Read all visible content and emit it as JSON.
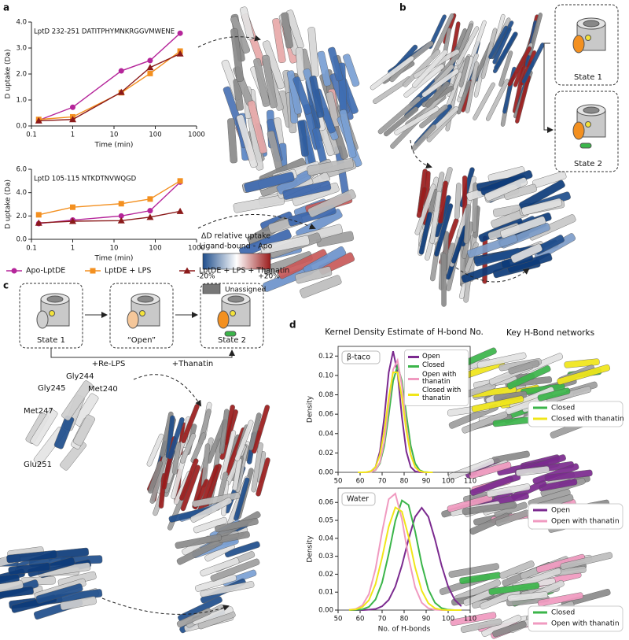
{
  "panel_labels": [
    "a",
    "b",
    "c",
    "d"
  ],
  "chart_data": [
    {
      "type": "line",
      "xscale": "log",
      "annotation": "LptD 232-251 DATITPHYMNKRGGVMWENE",
      "x_label": "Time (min)",
      "y_label": "D uptake (Da)",
      "x": [
        0.15,
        1,
        15,
        75,
        400
      ],
      "xlim": [
        0.1,
        1000
      ],
      "xticks": [
        0.1,
        1,
        10,
        100,
        1000
      ],
      "ylim": [
        0,
        4
      ],
      "yticks": [
        {
          "value": 0,
          "label": "0.0"
        },
        {
          "value": 1,
          "label": "1.0"
        },
        {
          "value": 2,
          "label": "2.0"
        },
        {
          "value": 3,
          "label": "3.0"
        },
        {
          "value": 4,
          "label": "4.0"
        }
      ],
      "series": [
        {
          "name": "Apo-LptDE",
          "color": "#b5259a",
          "marker": "circle",
          "values": [
            0.22,
            0.72,
            2.12,
            2.52,
            3.57
          ]
        },
        {
          "name": "LptDE + LPS",
          "color": "#f39020",
          "marker": "square",
          "values": [
            0.25,
            0.35,
            1.28,
            2.02,
            2.88
          ]
        },
        {
          "name": "LptDE + LPS + Thanatin",
          "color": "#8b1a1a",
          "marker": "triangle",
          "values": [
            0.2,
            0.25,
            1.3,
            2.25,
            2.78
          ]
        }
      ]
    },
    {
      "type": "line",
      "xscale": "log",
      "annotation": "LptD 105-115 NTKDTNVWQGD",
      "x_label": "Time (min)",
      "y_label": "D uptake (Da)",
      "x": [
        0.15,
        1,
        15,
        75,
        400
      ],
      "xlim": [
        0.1,
        1000
      ],
      "xticks": [
        0.1,
        1,
        10,
        100,
        1000
      ],
      "ylim": [
        0,
        6
      ],
      "yticks": [
        {
          "value": 0,
          "label": "0.0"
        },
        {
          "value": 2,
          "label": "2.0"
        },
        {
          "value": 4,
          "label": "4.0"
        },
        {
          "value": 6,
          "label": "6.0"
        }
      ],
      "series": [
        {
          "color": "#b5259a",
          "marker": "circle",
          "values": [
            1.35,
            1.65,
            2.0,
            2.45,
            4.9
          ]
        },
        {
          "color": "#f39020",
          "marker": "square",
          "values": [
            2.1,
            2.75,
            3.05,
            3.45,
            5.0
          ]
        },
        {
          "color": "#8b1a1a",
          "marker": "triangle",
          "values": [
            1.4,
            1.55,
            1.6,
            1.9,
            2.4
          ]
        }
      ]
    },
    {
      "type": "line",
      "title": "Kernel Density Estimate of H-bond No.",
      "annotation": "β-taco",
      "y_label": "Density",
      "x": [
        59,
        61,
        63,
        65,
        67,
        69,
        71,
        73,
        75,
        77,
        79,
        81,
        83,
        85,
        87,
        89,
        91,
        93
      ],
      "xlim": [
        50,
        110
      ],
      "xticks": [
        50,
        60,
        70,
        80,
        90,
        100,
        110
      ],
      "ylim": [
        0,
        0.13
      ],
      "yticks": [
        {
          "value": 0,
          "label": "0.00"
        },
        {
          "value": 0.02,
          "label": "0.02"
        },
        {
          "value": 0.04,
          "label": "0.04"
        },
        {
          "value": 0.06,
          "label": "0.06"
        },
        {
          "value": 0.08,
          "label": "0.08"
        },
        {
          "value": 0.1,
          "label": "0.10"
        },
        {
          "value": 0.12,
          "label": "0.12"
        }
      ],
      "legend": "upper right",
      "series": [
        {
          "name": "Open",
          "color": "#7b2a8f",
          "values": [
            0,
            0,
            0.0001,
            0.001,
            0.0055,
            0.0215,
            0.057,
            0.103,
            0.125,
            0.103,
            0.057,
            0.0215,
            0.0055,
            0.001,
            0.0001,
            0,
            0,
            0
          ]
        },
        {
          "name": "Closed",
          "color": "#3bb54a",
          "values": [
            0,
            0,
            0.0001,
            0.0004,
            0.0023,
            0.0093,
            0.0274,
            0.0594,
            0.0943,
            0.11,
            0.0943,
            0.0594,
            0.0274,
            0.0093,
            0.0023,
            0.0004,
            0.0001,
            0
          ]
        },
        {
          "name": "Open with thanatin",
          "color": "#f09ac0",
          "values": [
            0,
            0,
            0,
            0.0004,
            0.0024,
            0.0103,
            0.0316,
            0.0689,
            0.1061,
            0.1157,
            0.0893,
            0.0487,
            0.0188,
            0.0051,
            0.001,
            0.0001,
            0,
            0
          ]
        },
        {
          "name": "Closed with thanatin",
          "color": "#f0e619",
          "values": [
            0,
            0,
            0.0002,
            0.0013,
            0.0055,
            0.0179,
            0.0429,
            0.077,
            0.1032,
            0.1032,
            0.077,
            0.0429,
            0.0179,
            0.0055,
            0.0013,
            0.0002,
            0,
            0
          ]
        }
      ]
    },
    {
      "type": "line",
      "annotation": "Water",
      "y_label": "Density",
      "x_label": "No. of H-bonds",
      "x": [
        55,
        58,
        61,
        64,
        67,
        70,
        73,
        76,
        79,
        82,
        85,
        88,
        91,
        94,
        97,
        100,
        103,
        106
      ],
      "xlim": [
        50,
        110
      ],
      "xticks": [
        50,
        60,
        70,
        80,
        90,
        100,
        110
      ],
      "ylim": [
        0,
        0.068
      ],
      "yticks": [
        {
          "value": 0,
          "label": "0.00"
        },
        {
          "value": 0.01,
          "label": "0.01"
        },
        {
          "value": 0.02,
          "label": "0.02"
        },
        {
          "value": 0.03,
          "label": "0.03"
        },
        {
          "value": 0.04,
          "label": "0.04"
        },
        {
          "value": 0.05,
          "label": "0.05"
        },
        {
          "value": 0.06,
          "label": "0.06"
        }
      ],
      "series": [
        {
          "color": "#7b2a8f",
          "values": [
            0,
            0,
            0,
            0.0002,
            0.0006,
            0.0021,
            0.0057,
            0.0131,
            0.0249,
            0.0395,
            0.052,
            0.057,
            0.052,
            0.0395,
            0.0249,
            0.0131,
            0.0057,
            0.0021
          ]
        },
        {
          "color": "#3bb54a",
          "values": [
            0,
            0.0001,
            0.0004,
            0.0018,
            0.0059,
            0.0154,
            0.0314,
            0.0497,
            0.0611,
            0.0586,
            0.0438,
            0.0255,
            0.0115,
            0.0041,
            0.0011,
            0.0002,
            0,
            0
          ]
        },
        {
          "color": "#f09ac0",
          "values": [
            0.0001,
            0.0006,
            0.0026,
            0.0089,
            0.0229,
            0.0437,
            0.0618,
            0.0649,
            0.0507,
            0.0294,
            0.0127,
            0.0041,
            0.001,
            0.0002,
            0,
            0,
            0,
            0
          ]
        },
        {
          "color": "#f0e619",
          "values": [
            0.0001,
            0.0004,
            0.0017,
            0.0055,
            0.0144,
            0.0293,
            0.0465,
            0.0572,
            0.0549,
            0.041,
            0.0238,
            0.0108,
            0.0038,
            0.001,
            0.0002,
            0,
            0,
            0
          ]
        }
      ]
    }
  ],
  "colorbar": {
    "title": "ΔD relative uptake",
    "subtitle": "Ligand-bound - Apo",
    "min_label": "-20%",
    "max_label": "+20%",
    "unassigned": "Unassigned"
  },
  "panel_b": {
    "states": [
      "State 1",
      "State 2"
    ]
  },
  "panel_c": {
    "states": [
      "State 1",
      "“Open”",
      "State 2"
    ],
    "steps": [
      "+Re-LPS",
      "+Thanatin"
    ],
    "residues": [
      "Gly244",
      "Met240",
      "Gly245",
      "Met247",
      "Glu251"
    ]
  },
  "panel_d": {
    "title": "Key H-Bond networks",
    "legends": [
      [
        {
          "name": "Closed",
          "color": "#3bb54a"
        },
        {
          "name": "Closed with thanatin",
          "color": "#f0e619"
        }
      ],
      [
        {
          "name": "Open",
          "color": "#7b2a8f"
        },
        {
          "name": "Open with thanatin",
          "color": "#f09ac0"
        }
      ],
      [
        {
          "name": "Closed",
          "color": "#3bb54a"
        },
        {
          "name": "Open with thanatin",
          "color": "#f09ac0"
        }
      ]
    ]
  }
}
